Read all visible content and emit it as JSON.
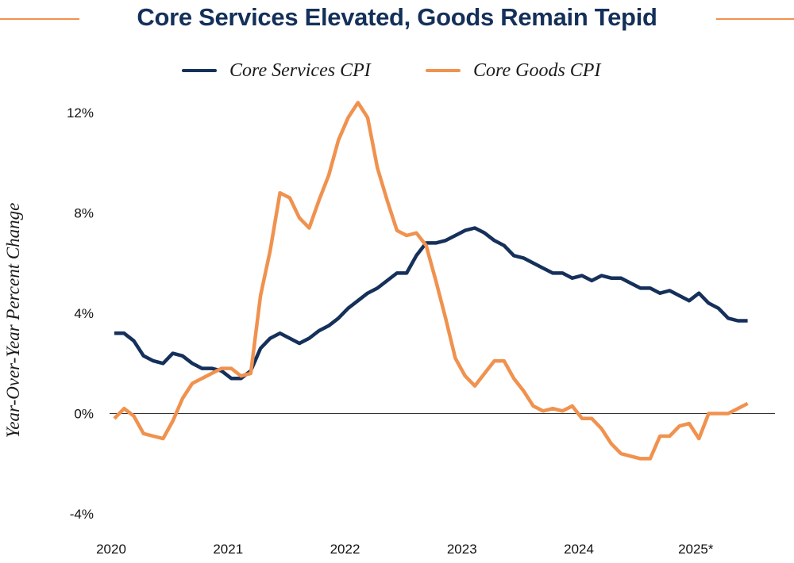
{
  "chart_data": {
    "type": "line",
    "title": "Core Services Elevated, Goods Remain Tepid",
    "xlabel": "",
    "ylabel": "Year-Over-Year Percent Change",
    "ylim": [
      -4,
      12
    ],
    "yticks": [
      {
        "value": 12,
        "label": "12%"
      },
      {
        "value": 8,
        "label": "8%"
      },
      {
        "value": 4,
        "label": "4%"
      },
      {
        "value": 0,
        "label": "0%"
      },
      {
        "value": -4,
        "label": "-4%"
      }
    ],
    "xticks": [
      {
        "value": 2020,
        "label": "2020"
      },
      {
        "value": 2021,
        "label": "2021"
      },
      {
        "value": 2022,
        "label": "2022"
      },
      {
        "value": 2023,
        "label": "2023"
      },
      {
        "value": 2024,
        "label": "2024"
      },
      {
        "value": 2025,
        "label": "2025*"
      }
    ],
    "xlim": [
      2020,
      2025.65
    ],
    "x_start": 2020.0,
    "x_step": 0.08333,
    "series": [
      {
        "name": "Core Services CPI",
        "color": "#15305a",
        "values": [
          3.2,
          3.2,
          2.9,
          2.3,
          2.1,
          2.0,
          2.4,
          2.3,
          2.0,
          1.8,
          1.8,
          1.7,
          1.4,
          1.4,
          1.7,
          2.6,
          3.0,
          3.2,
          3.0,
          2.8,
          3.0,
          3.3,
          3.5,
          3.8,
          4.2,
          4.5,
          4.8,
          5.0,
          5.3,
          5.6,
          5.6,
          6.3,
          6.8,
          6.8,
          6.9,
          7.1,
          7.3,
          7.4,
          7.2,
          6.9,
          6.7,
          6.3,
          6.2,
          6.0,
          5.8,
          5.6,
          5.6,
          5.4,
          5.5,
          5.3,
          5.5,
          5.4,
          5.4,
          5.2,
          5.0,
          5.0,
          4.8,
          4.9,
          4.7,
          4.5,
          4.8,
          4.4,
          4.2,
          3.8,
          3.7,
          3.7
        ]
      },
      {
        "name": "Core Goods CPI",
        "color": "#f0924f",
        "values": [
          -0.2,
          0.2,
          -0.1,
          -0.8,
          -0.9,
          -1.0,
          -0.3,
          0.6,
          1.2,
          1.4,
          1.6,
          1.8,
          1.8,
          1.5,
          1.6,
          4.7,
          6.5,
          8.8,
          8.6,
          7.8,
          7.4,
          8.5,
          9.5,
          10.9,
          11.8,
          12.4,
          11.8,
          9.8,
          8.5,
          7.3,
          7.1,
          7.2,
          6.7,
          5.3,
          3.8,
          2.2,
          1.5,
          1.1,
          1.6,
          2.1,
          2.1,
          1.4,
          0.9,
          0.3,
          0.1,
          0.2,
          0.1,
          0.3,
          -0.2,
          -0.2,
          -0.6,
          -1.2,
          -1.6,
          -1.7,
          -1.8,
          -1.8,
          -0.9,
          -0.9,
          -0.5,
          -0.4,
          -1.0,
          0.0,
          0.0,
          0.0,
          0.2,
          0.4
        ]
      }
    ],
    "grid": false,
    "legend_position": "top-center"
  }
}
